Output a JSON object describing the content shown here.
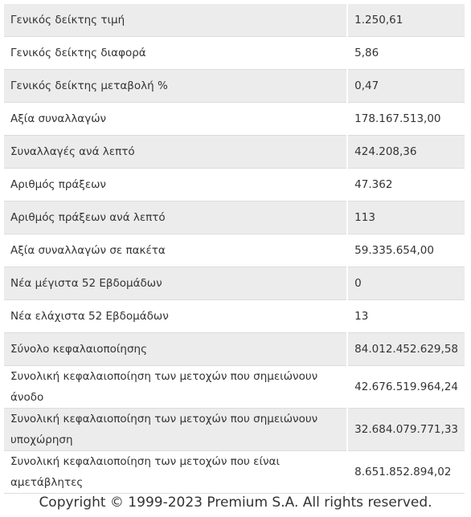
{
  "table": {
    "rows": [
      [
        "Γενικός δείκτης τιμή",
        "1.250,61"
      ],
      [
        "Γενικός δείκτης διαφορά",
        "5,86"
      ],
      [
        "Γενικός δείκτης μεταβολή %",
        "0,47"
      ],
      [
        "Αξία συναλλαγών",
        "178.167.513,00"
      ],
      [
        "Συναλλαγές ανά λεπτό",
        "424.208,36"
      ],
      [
        "Αριθμός πράξεων",
        "47.362"
      ],
      [
        "Αριθμός πράξεων ανά λεπτό",
        "113"
      ],
      [
        "Αξία συναλλαγών σε πακέτα",
        "59.335.654,00"
      ],
      [
        "Νέα μέγιστα 52 Εβδομάδων",
        "0"
      ],
      [
        "Νέα ελάχιστα 52 Εβδομάδων",
        "13"
      ],
      [
        "Σύνολο κεφαλαιοποίησης",
        "84.012.452.629,58"
      ],
      [
        "Συνολική κεφαλαιοποίηση των μετοχών που σημειώνουν άνοδο",
        "42.676.519.964,24"
      ],
      [
        "Συνολική κεφαλαιοποίηση των μετοχών που σημειώνουν υποχώρηση",
        "32.684.079.771,33"
      ],
      [
        "Συνολική κεφαλαιοποίηση των μετοχών που είναι αμετάβλητες",
        "8.651.852.894,02"
      ]
    ]
  },
  "footer": {
    "copyright": "Copyright © 1999-2023 Premium S.A. All rights reserved."
  }
}
